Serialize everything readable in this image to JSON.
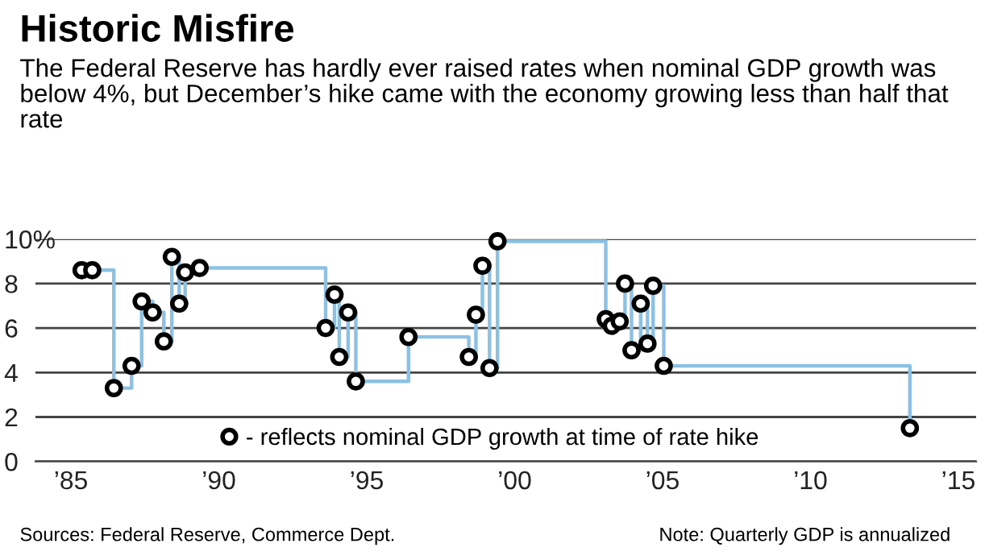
{
  "chart_data": {
    "type": "scatter",
    "title": "Historic Misfire",
    "subtitle": "The Federal Reserve has hardly ever raised rates when nominal GDP growth was below 4%, but December’s hike came with the economy growing less than half that rate",
    "series": [
      {
        "type": "step",
        "color": "#8cc1e3",
        "x": [
          1985.36,
          1985.72,
          1986.45,
          1987.05,
          1987.39,
          1987.76,
          1988.14,
          1988.41,
          1988.66,
          1988.86,
          1989.35,
          1993.61,
          1993.91,
          1994.07,
          1994.37,
          1994.63,
          1996.41,
          1998.45,
          1998.69,
          1998.91,
          1999.15,
          1999.42,
          2003.08,
          2003.28,
          2003.55,
          2003.73,
          2003.95,
          2004.26,
          2004.49,
          2004.68,
          2005.04,
          2013.36
        ],
        "values": [
          8.6,
          8.6,
          3.3,
          4.3,
          7.2,
          6.7,
          5.4,
          9.2,
          7.1,
          8.5,
          8.7,
          6.0,
          7.5,
          4.7,
          6.7,
          3.6,
          5.6,
          4.7,
          6.6,
          8.8,
          4.2,
          9.9,
          6.4,
          6.1,
          6.3,
          8.0,
          5.0,
          7.1,
          5.3,
          7.9,
          4.3,
          1.5
        ]
      },
      {
        "name": "- reflects nominal GDP growth at time of rate hike",
        "color": "#000000",
        "marker": "circle",
        "x": [
          1985.36,
          1985.72,
          1986.45,
          1987.05,
          1987.39,
          1987.76,
          1988.14,
          1988.41,
          1988.66,
          1988.86,
          1989.35,
          1993.61,
          1993.91,
          1994.07,
          1994.37,
          1994.63,
          1996.41,
          1998.45,
          1998.69,
          1998.91,
          1999.15,
          1999.42,
          2003.08,
          2003.28,
          2003.55,
          2003.73,
          2003.95,
          2004.26,
          2004.49,
          2004.68,
          2005.04,
          2013.36
        ],
        "values": [
          8.6,
          8.6,
          3.3,
          4.3,
          7.2,
          6.7,
          5.4,
          9.2,
          7.1,
          8.5,
          8.7,
          6.0,
          7.5,
          4.7,
          6.7,
          3.6,
          5.6,
          4.7,
          6.6,
          8.8,
          4.2,
          9.9,
          6.4,
          6.1,
          6.3,
          8.0,
          5.0,
          7.1,
          5.3,
          7.9,
          4.3,
          1.5
        ]
      }
    ],
    "xlim": [
      1983.8,
      2015.6
    ],
    "xticks": [
      {
        "value": 1985,
        "label": "’85"
      },
      {
        "value": 1990,
        "label": "’90"
      },
      {
        "value": 1995,
        "label": "’95"
      },
      {
        "value": 2000,
        "label": "’00"
      },
      {
        "value": 2005,
        "label": "’05"
      },
      {
        "value": 2010,
        "label": "’10"
      },
      {
        "value": 2015,
        "label": "’15"
      }
    ],
    "ylim": [
      0,
      10
    ],
    "yticks": [
      0,
      2,
      4,
      6,
      8,
      {
        "value": 10,
        "label": "10%"
      }
    ],
    "grid": "y",
    "legend": "bottom",
    "annotations": [
      "Sources: Federal Reserve, Commerce Dept.",
      "Note: Quarterly GDP is annualized"
    ]
  }
}
